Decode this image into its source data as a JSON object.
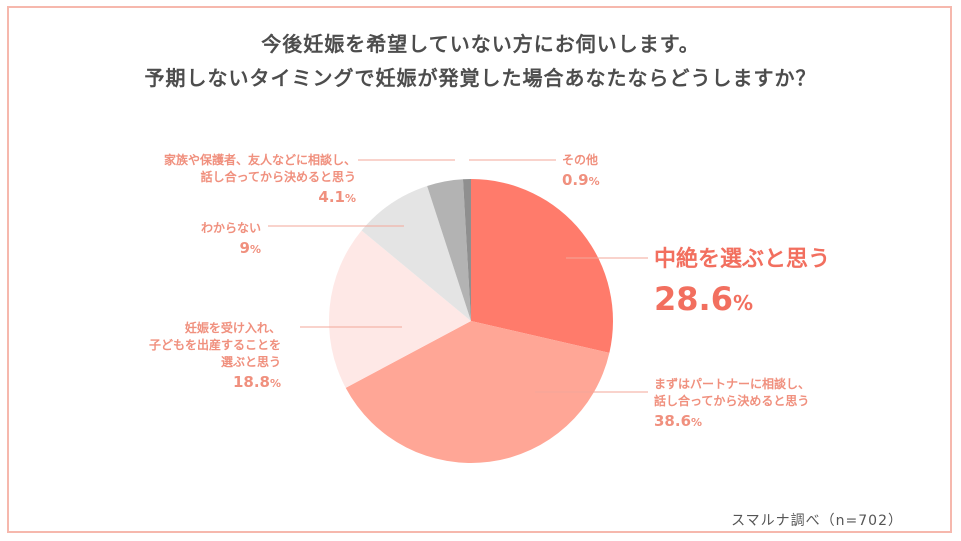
{
  "chart_data": {
    "type": "pie",
    "title_lines": [
      "今後妊娠を希望していない方にお伺いします。",
      "予期しないタイミングで妊娠が発覚した場合あなたならどうしますか？"
    ],
    "slices": [
      {
        "label_lines": [
          "中絶を選ぶと思う"
        ],
        "value": 28.6,
        "value_text": "28.6",
        "unit": "%",
        "color": "#ff7b6b"
      },
      {
        "label_lines": [
          "まずはパートナーに相談し、",
          "話し合ってから決めると思う"
        ],
        "value": 38.6,
        "value_text": "38.6",
        "unit": "%",
        "color": "#ffa696"
      },
      {
        "label_lines": [
          "妊娠を受け入れ、",
          "子どもを出産することを",
          "選ぶと思う"
        ],
        "value": 18.8,
        "value_text": "18.8",
        "unit": "%",
        "color": "#fee8e6"
      },
      {
        "label_lines": [
          "わからない"
        ],
        "value": 9,
        "value_text": "9",
        "unit": "%",
        "color": "#e4e4e4"
      },
      {
        "label_lines": [
          "家族や保護者、友人などに相談し、",
          "話し合ってから決めると思う"
        ],
        "value": 4.1,
        "value_text": "4.1",
        "unit": "%",
        "color": "#b3b3b3"
      },
      {
        "label_lines": [
          "その他"
        ],
        "value": 0.9,
        "value_text": "0.9",
        "unit": "%",
        "color": "#8f8f8f"
      }
    ]
  },
  "source": "スマルナ調べ（n=702）"
}
